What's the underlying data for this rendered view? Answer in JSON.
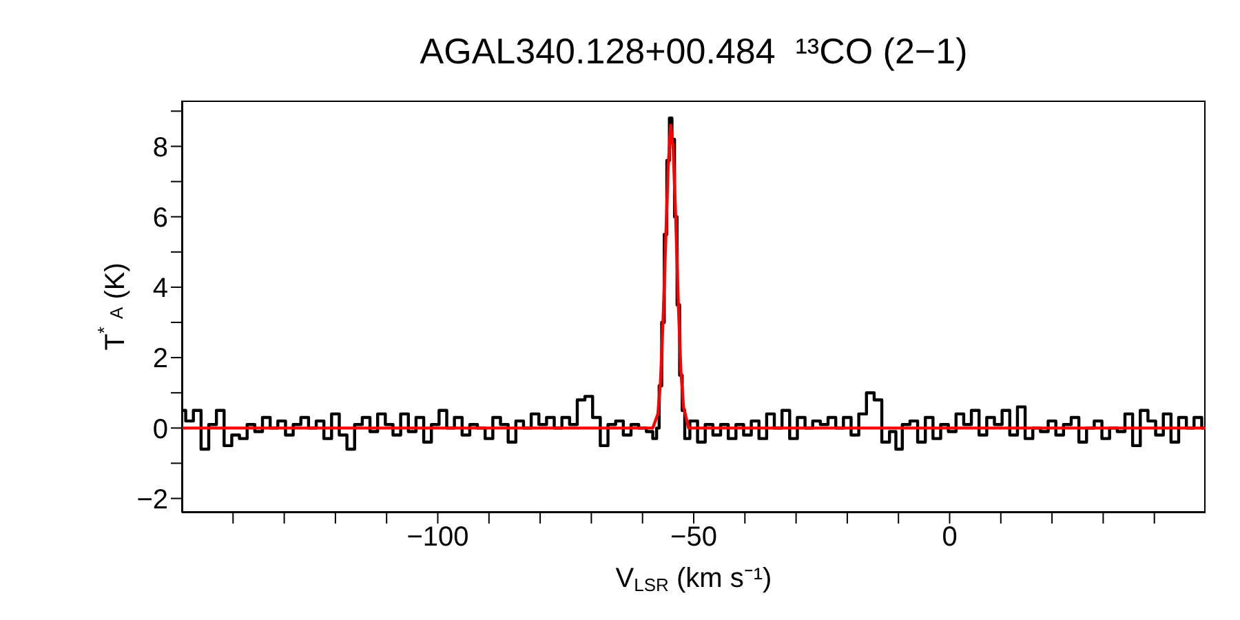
{
  "chart_data": {
    "type": "line",
    "title": "AGAL340.128+00.484  ¹³CO (2−1)",
    "xlabel": "V$_{LSR}$ (km s⁻¹)",
    "ylabel": "T$^{*}$$_{A}$ (K)",
    "xlim": [
      -150,
      50
    ],
    "ylim": [
      -2.4,
      9.3
    ],
    "xticks": [
      {
        "value": -140,
        "label": null
      },
      {
        "value": -130,
        "label": null
      },
      {
        "value": -120,
        "label": null
      },
      {
        "value": -110,
        "label": null
      },
      {
        "value": -100,
        "label": "−100"
      },
      {
        "value": -90,
        "label": null
      },
      {
        "value": -80,
        "label": null
      },
      {
        "value": -70,
        "label": null
      },
      {
        "value": -60,
        "label": null
      },
      {
        "value": -50,
        "label": "−50"
      },
      {
        "value": -40,
        "label": null
      },
      {
        "value": -30,
        "label": null
      },
      {
        "value": -20,
        "label": null
      },
      {
        "value": -10,
        "label": null
      },
      0,
      {
        "value": 10,
        "label": null
      },
      {
        "value": 20,
        "label": null
      },
      {
        "value": 30,
        "label": null
      },
      {
        "value": 40,
        "label": null
      }
    ],
    "yticks": [
      {
        "value": -2,
        "label": "−2"
      },
      {
        "value": -1,
        "label": null
      },
      0,
      {
        "value": 1,
        "label": null
      },
      2,
      {
        "value": 3,
        "label": null
      },
      4,
      {
        "value": 5,
        "label": null
      },
      6,
      {
        "value": 7,
        "label": null
      },
      8,
      {
        "value": 9,
        "label": null
      }
    ],
    "marker": "none",
    "line_style": "solid",
    "series": [
      {
        "type": "step",
        "color": "#000000",
        "x": [
          -150,
          -148.5,
          -147,
          -145.5,
          -144,
          -142.5,
          -141,
          -139.5,
          -138,
          -136.5,
          -135,
          -133.5,
          -132,
          -130.5,
          -129,
          -127.5,
          -126,
          -124.5,
          -123,
          -121.5,
          -120,
          -118.5,
          -117,
          -115.5,
          -114,
          -112.5,
          -111,
          -109.5,
          -108,
          -106.5,
          -105,
          -103.5,
          -102,
          -100.5,
          -99,
          -97.5,
          -96,
          -94.5,
          -93,
          -91.5,
          -90,
          -88.5,
          -87,
          -85.5,
          -84,
          -82.5,
          -81,
          -79.5,
          -78,
          -76.5,
          -75,
          -73.5,
          -72,
          -70.5,
          -69,
          -67.5,
          -66,
          -64.5,
          -63,
          -61.5,
          -60,
          -58.5,
          -57.5,
          -57,
          -56.5,
          -56,
          -55.5,
          -55,
          -54.5,
          -54,
          -53.5,
          -53,
          -52.5,
          -52,
          -51.5,
          -50,
          -48.5,
          -47,
          -45.5,
          -44,
          -42.5,
          -41,
          -39.5,
          -38,
          -36.5,
          -35,
          -33.5,
          -32,
          -30.5,
          -29,
          -27.5,
          -26,
          -24.5,
          -23,
          -21.5,
          -20,
          -18.5,
          -17,
          -15.5,
          -14,
          -12.5,
          -11,
          -10,
          -8.5,
          -7,
          -5.5,
          -4,
          -2.5,
          -1,
          0.5,
          2,
          3.5,
          5,
          6.5,
          8,
          9.5,
          11,
          12.5,
          14,
          15.5,
          17,
          18.5,
          20,
          21.5,
          23,
          24.5,
          26,
          27.5,
          29,
          30.5,
          32,
          33.5,
          35,
          36.5,
          38,
          39.5,
          41,
          42.5,
          44,
          45.5,
          47,
          48.5,
          50
        ],
        "values": [
          0.5,
          0.2,
          0.5,
          -0.6,
          0.1,
          0.5,
          -0.5,
          -0.2,
          -0.3,
          0.1,
          -0.1,
          0.3,
          0.0,
          0.2,
          -0.2,
          0.1,
          0.3,
          0.0,
          0.2,
          -0.3,
          0.4,
          -0.2,
          -0.6,
          0.1,
          0.3,
          -0.1,
          0.4,
          0.1,
          -0.2,
          0.4,
          -0.1,
          0.3,
          -0.4,
          0.1,
          0.5,
          0.0,
          0.3,
          -0.2,
          0.1,
          0.0,
          -0.3,
          0.3,
          0.1,
          -0.4,
          0.2,
          0.0,
          0.4,
          0.1,
          0.3,
          0.0,
          0.3,
          0.1,
          0.8,
          0.9,
          0.3,
          -0.5,
          0.1,
          0.2,
          -0.2,
          0.1,
          0.0,
          -0.1,
          -0.3,
          0.0,
          1.2,
          3.0,
          5.5,
          7.6,
          8.8,
          8.2,
          6.0,
          3.5,
          1.5,
          0.5,
          -0.3,
          0.2,
          -0.4,
          0.1,
          -0.2,
          0.1,
          -0.3,
          0.1,
          -0.2,
          0.2,
          -0.3,
          0.4,
          0.0,
          0.5,
          -0.3,
          0.3,
          0.0,
          0.2,
          0.1,
          0.3,
          0.0,
          0.3,
          -0.2,
          0.4,
          1.0,
          0.8,
          -0.4,
          -0.1,
          -0.6,
          0.1,
          0.2,
          -0.4,
          0.3,
          -0.3,
          0.1,
          -0.1,
          0.4,
          0.1,
          0.5,
          -0.2,
          0.3,
          0.1,
          0.5,
          -0.2,
          0.6,
          -0.3,
          0.0,
          -0.1,
          0.2,
          -0.2,
          0.1,
          0.3,
          -0.4,
          0.0,
          0.2,
          -0.3,
          0.0,
          -0.1,
          0.4,
          -0.5,
          0.5,
          0.2,
          -0.2,
          0.4,
          -0.4,
          0.3,
          0.0,
          0.3,
          0.0
        ]
      },
      {
        "type": "line",
        "color": "#ff0000",
        "x": [
          -150,
          -58,
          -57,
          -56.5,
          -56,
          -55.5,
          -55,
          -54.5,
          -54,
          -53.5,
          -53,
          -52.5,
          -52,
          -51,
          50
        ],
        "values": [
          0,
          0,
          0.4,
          1.3,
          3.0,
          5.2,
          7.4,
          8.6,
          7.9,
          5.9,
          3.5,
          1.6,
          0.6,
          0,
          0
        ]
      }
    ]
  }
}
